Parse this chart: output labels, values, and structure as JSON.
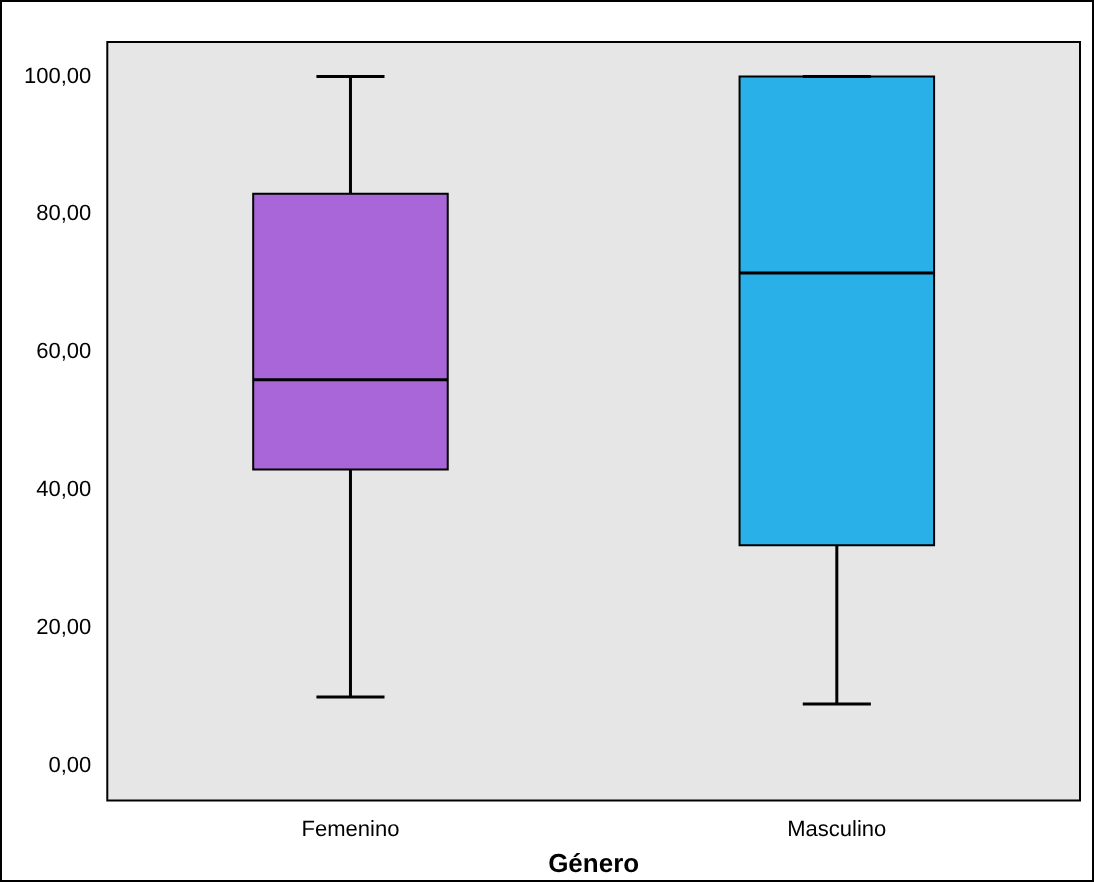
{
  "chart_data": {
    "type": "box",
    "xlabel": "Género",
    "categories": [
      "Femenino",
      "Masculino"
    ],
    "boxes": [
      {
        "low": 10,
        "q1": 43,
        "median": 56,
        "q3": 83,
        "high": 100
      },
      {
        "low": 9,
        "q1": 32,
        "median": 71.5,
        "q3": 100,
        "high": 100
      }
    ],
    "colors": [
      "#a866d8",
      "#2ab0e8"
    ],
    "ylim": [
      -5,
      105
    ],
    "yticks": [
      {
        "value": 0,
        "label": "0,00"
      },
      {
        "value": 20,
        "label": "20,00"
      },
      {
        "value": 40,
        "label": "40,00"
      },
      {
        "value": 60,
        "label": "60,00"
      },
      {
        "value": 80,
        "label": "80,00"
      },
      {
        "value": 100,
        "label": "100,00"
      }
    ],
    "grid": false,
    "legend": false
  }
}
